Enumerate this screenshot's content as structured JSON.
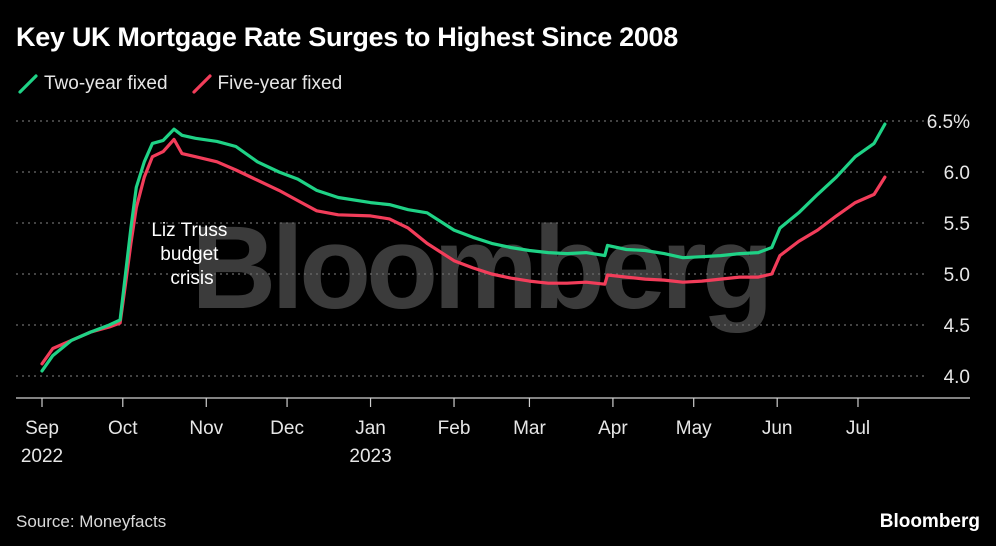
{
  "chart_data": {
    "type": "line",
    "title": "Key UK Mortgage Rate Surges to Highest Since 2008",
    "source": "Source: Moneyfacts",
    "brand": "Bloomberg",
    "watermark": "Bloomberg",
    "annotation": [
      "Liz Truss",
      "budget",
      "crisis"
    ],
    "y_ticks": [
      "6.5%",
      "6.0",
      "5.5",
      "5.0",
      "4.5",
      "4.0"
    ],
    "y_tick_values": [
      6.5,
      6.0,
      5.5,
      5.0,
      4.5,
      4.0
    ],
    "ylim": [
      4.0,
      6.5
    ],
    "x_ticks": [
      {
        "date": "2022-09-01",
        "label": "Sep",
        "sub": "2022"
      },
      {
        "date": "2022-10-01",
        "label": "Oct",
        "sub": ""
      },
      {
        "date": "2022-11-01",
        "label": "Nov",
        "sub": ""
      },
      {
        "date": "2022-12-01",
        "label": "Dec",
        "sub": ""
      },
      {
        "date": "2023-01-01",
        "label": "Jan",
        "sub": "2023"
      },
      {
        "date": "2023-02-01",
        "label": "Feb",
        "sub": ""
      },
      {
        "date": "2023-03-01",
        "label": "Mar",
        "sub": ""
      },
      {
        "date": "2023-04-01",
        "label": "Apr",
        "sub": ""
      },
      {
        "date": "2023-05-01",
        "label": "May",
        "sub": ""
      },
      {
        "date": "2023-06-01",
        "label": "Jun",
        "sub": ""
      },
      {
        "date": "2023-07-01",
        "label": "Jul",
        "sub": ""
      }
    ],
    "grid": "horizontal-dotted",
    "legend_position": "top-left",
    "series": [
      {
        "name": "Two-year fixed",
        "color": "#1fd286",
        "points": [
          [
            "2022-09-01",
            4.05
          ],
          [
            "2022-09-05",
            4.2
          ],
          [
            "2022-09-12",
            4.35
          ],
          [
            "2022-09-19",
            4.43
          ],
          [
            "2022-09-26",
            4.5
          ],
          [
            "2022-09-30",
            4.55
          ],
          [
            "2022-10-02",
            5.0
          ],
          [
            "2022-10-04",
            5.45
          ],
          [
            "2022-10-06",
            5.85
          ],
          [
            "2022-10-09",
            6.1
          ],
          [
            "2022-10-12",
            6.28
          ],
          [
            "2022-10-16",
            6.31
          ],
          [
            "2022-10-20",
            6.42
          ],
          [
            "2022-10-23",
            6.36
          ],
          [
            "2022-10-28",
            6.33
          ],
          [
            "2022-11-05",
            6.3
          ],
          [
            "2022-11-12",
            6.25
          ],
          [
            "2022-11-20",
            6.1
          ],
          [
            "2022-11-28",
            6.0
          ],
          [
            "2022-12-05",
            5.93
          ],
          [
            "2022-12-12",
            5.82
          ],
          [
            "2022-12-20",
            5.75
          ],
          [
            "2023-01-01",
            5.7
          ],
          [
            "2023-01-08",
            5.68
          ],
          [
            "2023-01-15",
            5.63
          ],
          [
            "2023-01-22",
            5.6
          ],
          [
            "2023-02-01",
            5.43
          ],
          [
            "2023-02-08",
            5.36
          ],
          [
            "2023-02-15",
            5.3
          ],
          [
            "2023-02-22",
            5.26
          ],
          [
            "2023-03-01",
            5.23
          ],
          [
            "2023-03-08",
            5.21
          ],
          [
            "2023-03-15",
            5.2
          ],
          [
            "2023-03-22",
            5.21
          ],
          [
            "2023-03-29",
            5.18
          ],
          [
            "2023-03-30",
            5.28
          ],
          [
            "2023-04-06",
            5.24
          ],
          [
            "2023-04-13",
            5.23
          ],
          [
            "2023-04-20",
            5.2
          ],
          [
            "2023-04-27",
            5.16
          ],
          [
            "2023-05-04",
            5.17
          ],
          [
            "2023-05-11",
            5.18
          ],
          [
            "2023-05-18",
            5.2
          ],
          [
            "2023-05-25",
            5.21
          ],
          [
            "2023-05-30",
            5.26
          ],
          [
            "2023-06-02",
            5.45
          ],
          [
            "2023-06-09",
            5.6
          ],
          [
            "2023-06-16",
            5.78
          ],
          [
            "2023-06-23",
            5.95
          ],
          [
            "2023-06-30",
            6.15
          ],
          [
            "2023-07-07",
            6.28
          ],
          [
            "2023-07-11",
            6.47
          ]
        ]
      },
      {
        "name": "Five-year fixed",
        "color": "#f23d5a",
        "points": [
          [
            "2022-09-01",
            4.12
          ],
          [
            "2022-09-05",
            4.27
          ],
          [
            "2022-09-12",
            4.35
          ],
          [
            "2022-09-19",
            4.43
          ],
          [
            "2022-09-26",
            4.48
          ],
          [
            "2022-09-30",
            4.52
          ],
          [
            "2022-10-02",
            4.9
          ],
          [
            "2022-10-04",
            5.3
          ],
          [
            "2022-10-06",
            5.65
          ],
          [
            "2022-10-09",
            5.95
          ],
          [
            "2022-10-12",
            6.15
          ],
          [
            "2022-10-16",
            6.2
          ],
          [
            "2022-10-20",
            6.32
          ],
          [
            "2022-10-23",
            6.18
          ],
          [
            "2022-10-28",
            6.15
          ],
          [
            "2022-11-05",
            6.1
          ],
          [
            "2022-11-12",
            6.02
          ],
          [
            "2022-11-20",
            5.92
          ],
          [
            "2022-11-28",
            5.82
          ],
          [
            "2022-12-05",
            5.72
          ],
          [
            "2022-12-12",
            5.62
          ],
          [
            "2022-12-20",
            5.58
          ],
          [
            "2023-01-01",
            5.57
          ],
          [
            "2023-01-08",
            5.54
          ],
          [
            "2023-01-15",
            5.45
          ],
          [
            "2023-01-22",
            5.3
          ],
          [
            "2023-02-01",
            5.13
          ],
          [
            "2023-02-08",
            5.06
          ],
          [
            "2023-02-15",
            5.0
          ],
          [
            "2023-02-22",
            4.96
          ],
          [
            "2023-03-01",
            4.93
          ],
          [
            "2023-03-08",
            4.91
          ],
          [
            "2023-03-15",
            4.91
          ],
          [
            "2023-03-22",
            4.92
          ],
          [
            "2023-03-29",
            4.9
          ],
          [
            "2023-03-30",
            4.99
          ],
          [
            "2023-04-06",
            4.97
          ],
          [
            "2023-04-13",
            4.95
          ],
          [
            "2023-04-20",
            4.94
          ],
          [
            "2023-04-27",
            4.92
          ],
          [
            "2023-05-04",
            4.93
          ],
          [
            "2023-05-11",
            4.95
          ],
          [
            "2023-05-18",
            4.97
          ],
          [
            "2023-05-25",
            4.97
          ],
          [
            "2023-05-30",
            5.0
          ],
          [
            "2023-06-02",
            5.18
          ],
          [
            "2023-06-09",
            5.32
          ],
          [
            "2023-06-16",
            5.43
          ],
          [
            "2023-06-23",
            5.57
          ],
          [
            "2023-06-30",
            5.7
          ],
          [
            "2023-07-07",
            5.78
          ],
          [
            "2023-07-11",
            5.95
          ]
        ]
      }
    ]
  }
}
